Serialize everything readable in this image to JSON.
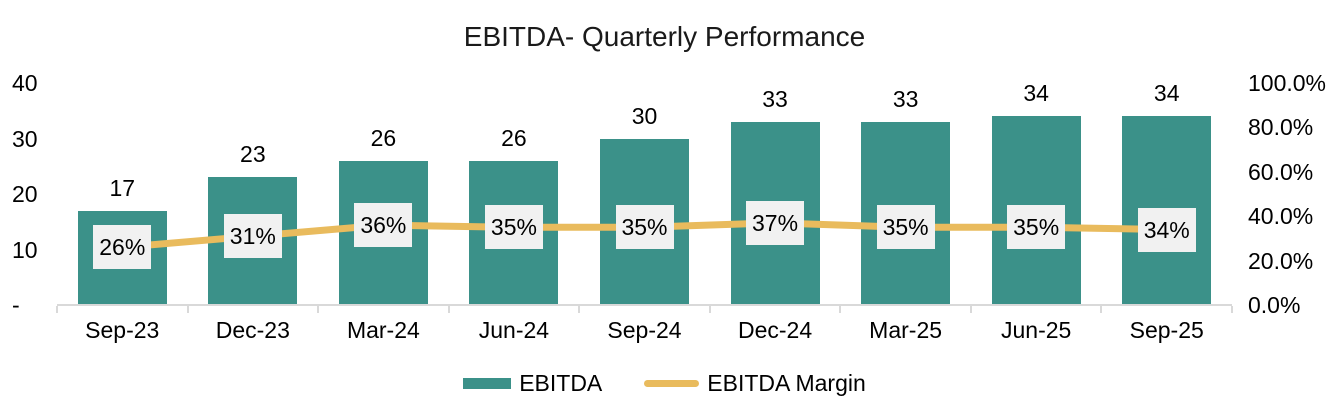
{
  "chart_data": {
    "type": "bar",
    "combo": "bar+line",
    "title": "EBITDA- Quarterly Performance",
    "categories": [
      "Sep-23",
      "Dec-23",
      "Mar-24",
      "Jun-24",
      "Sep-24",
      "Dec-24",
      "Mar-25",
      "Jun-25",
      "Sep-25"
    ],
    "series": [
      {
        "name": "EBITDA",
        "type": "bar",
        "axis": "left",
        "values": [
          17,
          23,
          26,
          26,
          30,
          33,
          33,
          34,
          34
        ],
        "labels": [
          "17",
          "23",
          "26",
          "26",
          "30",
          "33",
          "33",
          "34",
          "34"
        ]
      },
      {
        "name": "EBITDA Margin",
        "type": "line",
        "axis": "right",
        "values": [
          26,
          31,
          36,
          35,
          35,
          37,
          35,
          35,
          34
        ],
        "labels": [
          "26%",
          "31%",
          "36%",
          "35%",
          "35%",
          "37%",
          "35%",
          "35%",
          "34%"
        ]
      }
    ],
    "left_axis": {
      "ticks": [
        "40",
        "30",
        "20",
        "10",
        "-"
      ],
      "min": 0,
      "max": 40
    },
    "right_axis": {
      "ticks": [
        "100.0%",
        "80.0%",
        "60.0%",
        "40.0%",
        "20.0%",
        "0.0%"
      ],
      "min": 0,
      "max": 100
    },
    "legend": [
      {
        "label": "EBITDA",
        "swatch": "bar"
      },
      {
        "label": "EBITDA Margin",
        "swatch": "line"
      }
    ],
    "layout_hints": {
      "grid": "off",
      "legend_position": "bottom-center"
    },
    "colors": {
      "bar": "#3B9189",
      "line": "#E9BB5D",
      "label_box_bg": "#F1F1F1",
      "axis_line": "#D9D9D9",
      "text": "#000000"
    }
  }
}
